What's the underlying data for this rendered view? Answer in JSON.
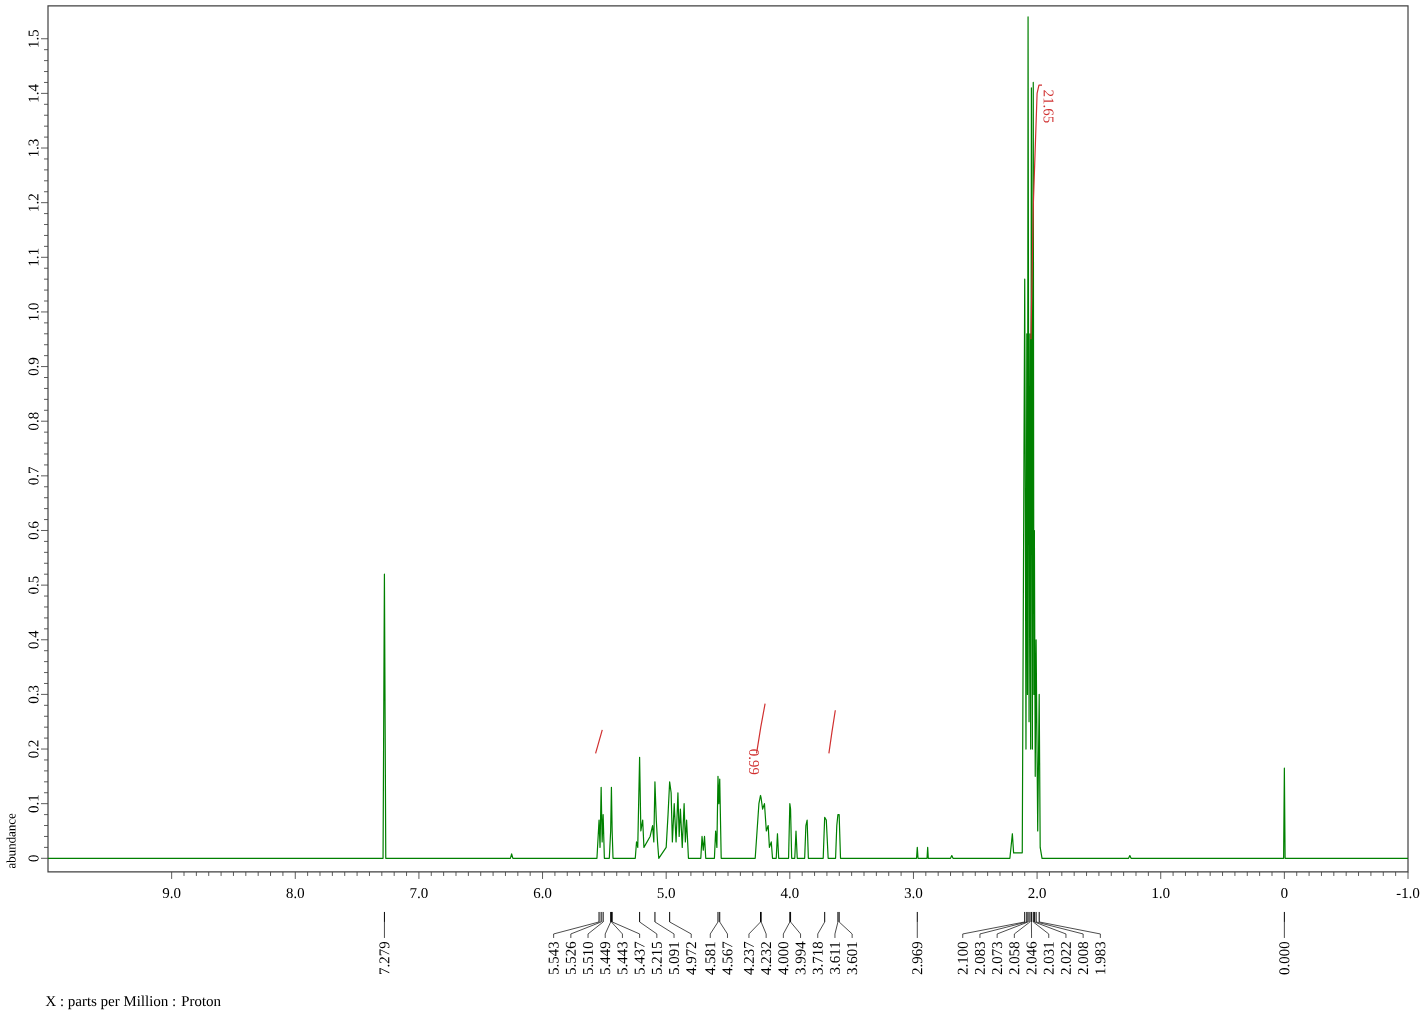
{
  "chart_data": {
    "type": "line",
    "ylabel": "abundance",
    "xlim": [
      10,
      -1
    ],
    "ylim": [
      -0.025,
      1.56
    ],
    "xticks": [
      {
        "value": 9,
        "label": "9.0"
      },
      {
        "value": 8,
        "label": "8.0"
      },
      {
        "value": 7,
        "label": "7.0"
      },
      {
        "value": 6,
        "label": "6.0"
      },
      {
        "value": 5,
        "label": "5.0"
      },
      {
        "value": 4,
        "label": "4.0"
      },
      {
        "value": 3,
        "label": "3.0"
      },
      {
        "value": 2,
        "label": "2.0"
      },
      {
        "value": 1,
        "label": "1.0"
      },
      0,
      {
        "value": -1,
        "label": "-1.0"
      }
    ],
    "yticks": [
      0,
      0.1,
      0.2,
      0.3,
      0.4,
      0.5,
      0.6,
      0.7,
      0.8,
      0.9,
      {
        "value": 1.0,
        "label": "1.0"
      },
      1.1,
      1.2,
      1.3,
      1.4,
      1.5
    ],
    "series": [
      {
        "color": "#008000",
        "x": [
          10.0,
          7.29,
          7.279,
          7.268,
          6.26,
          6.25,
          6.24,
          5.56,
          5.543,
          5.535,
          5.526,
          5.518,
          5.51,
          5.5,
          5.46,
          5.449,
          5.443,
          5.437,
          5.43,
          5.25,
          5.24,
          5.23,
          5.215,
          5.205,
          5.19,
          5.18,
          5.13,
          5.11,
          5.1,
          5.091,
          5.08,
          5.07,
          5.06,
          5.0,
          4.985,
          4.972,
          4.96,
          4.95,
          4.935,
          4.92,
          4.905,
          4.895,
          4.885,
          4.87,
          4.855,
          4.845,
          4.835,
          4.82,
          4.72,
          4.71,
          4.7,
          4.69,
          4.68,
          4.61,
          4.6,
          4.59,
          4.581,
          4.574,
          4.567,
          4.555,
          4.28,
          4.265,
          4.25,
          4.237,
          4.232,
          4.22,
          4.205,
          4.19,
          4.175,
          4.165,
          4.15,
          4.14,
          4.11,
          4.1,
          4.09,
          4.01,
          4.0,
          3.994,
          3.985,
          3.96,
          3.95,
          3.94,
          3.88,
          3.87,
          3.86,
          3.85,
          3.73,
          3.718,
          3.705,
          3.69,
          3.63,
          3.62,
          3.611,
          3.601,
          3.59,
          2.975,
          2.969,
          2.963,
          2.89,
          2.885,
          2.88,
          2.7,
          2.69,
          2.68,
          2.22,
          2.2,
          2.19,
          2.12,
          2.1,
          2.09,
          2.083,
          2.078,
          2.073,
          2.065,
          2.058,
          2.052,
          2.046,
          2.038,
          2.031,
          2.026,
          2.022,
          2.015,
          2.008,
          1.995,
          1.983,
          1.975,
          1.96,
          1.26,
          1.25,
          1.24,
          0.006,
          0.0,
          -0.006,
          -1.0
        ],
        "values": [
          0,
          0,
          0.52,
          0,
          0,
          0.008,
          0,
          0,
          0.07,
          0.02,
          0.13,
          0.03,
          0.08,
          0,
          0,
          0.05,
          0.13,
          0.05,
          0,
          0,
          0.03,
          0.02,
          0.185,
          0.05,
          0.07,
          0.02,
          0.04,
          0.06,
          0.03,
          0.14,
          0.07,
          0.03,
          0,
          0.02,
          0.08,
          0.14,
          0.12,
          0.03,
          0.1,
          0.03,
          0.12,
          0.04,
          0.09,
          0.02,
          0.1,
          0.03,
          0.07,
          0,
          0,
          0.04,
          0.015,
          0.04,
          0,
          0,
          0.05,
          0.02,
          0.15,
          0.1,
          0.145,
          0,
          0,
          0.05,
          0.1,
          0.115,
          0.11,
          0.09,
          0.1,
          0.05,
          0.06,
          0.02,
          0.03,
          0,
          0,
          0.045,
          0,
          0,
          0.1,
          0.09,
          0,
          0,
          0.05,
          0,
          0,
          0.06,
          0.07,
          0,
          0,
          0.075,
          0.07,
          0,
          0,
          0.06,
          0.08,
          0.08,
          0,
          0,
          0.02,
          0,
          0,
          0.02,
          0,
          0,
          0.005,
          0,
          0,
          0.045,
          0.01,
          0.01,
          1.06,
          0.2,
          0.96,
          0.3,
          1.54,
          0.25,
          0.96,
          0.2,
          1.41,
          0.2,
          1.42,
          0.3,
          0.6,
          0.15,
          0.4,
          0.05,
          0.3,
          0.02,
          0,
          0,
          0.005,
          0,
          0,
          0.165,
          0,
          0
        ]
      },
      {
        "color": "#d03030",
        "x": [
          5.571,
          5.517
        ],
        "values": [
          0.192,
          0.235
        ]
      },
      {
        "color": "#d03030",
        "x": [
          4.269,
          4.235,
          4.2
        ],
        "values": [
          0.192,
          0.24,
          0.283
        ]
      },
      {
        "color": "#d03030",
        "x": [
          3.684,
          3.66,
          3.632
        ],
        "values": [
          0.192,
          0.23,
          0.271
        ]
      },
      {
        "color": "#d03030",
        "x": [
          2.05,
          2.03,
          2.0,
          1.985,
          1.96
        ],
        "values": [
          0.95,
          1.2,
          1.4,
          1.415,
          1.415
        ]
      }
    ],
    "annotations": [
      {
        "text": "7.279",
        "x": 7.279
      },
      {
        "text": "5.543",
        "x": 5.543
      },
      {
        "text": "5.526",
        "x": 5.526
      },
      {
        "text": "5.510",
        "x": 5.51
      },
      {
        "text": "5.449",
        "x": 5.449
      },
      {
        "text": "5.443",
        "x": 5.443
      },
      {
        "text": "5.437",
        "x": 5.437
      },
      {
        "text": "5.215",
        "x": 5.215
      },
      {
        "text": "5.091",
        "x": 5.091
      },
      {
        "text": "4.972",
        "x": 4.972
      },
      {
        "text": "4.581",
        "x": 4.581
      },
      {
        "text": "4.567",
        "x": 4.567
      },
      {
        "text": "4.237",
        "x": 4.237
      },
      {
        "text": "4.232",
        "x": 4.232
      },
      {
        "text": "4.000",
        "x": 4.0
      },
      {
        "text": "3.994",
        "x": 3.994
      },
      {
        "text": "3.718",
        "x": 3.718
      },
      {
        "text": "3.611",
        "x": 3.611
      },
      {
        "text": "3.601",
        "x": 3.601
      },
      {
        "text": "2.969",
        "x": 2.969
      },
      {
        "text": "2.100",
        "x": 2.1
      },
      {
        "text": "2.083",
        "x": 2.083
      },
      {
        "text": "2.073",
        "x": 2.073
      },
      {
        "text": "2.058",
        "x": 2.058
      },
      {
        "text": "2.046",
        "x": 2.046
      },
      {
        "text": "2.031",
        "x": 2.031
      },
      {
        "text": "2.022",
        "x": 2.022
      },
      {
        "text": "2.008",
        "x": 2.008
      },
      {
        "text": "1.983",
        "x": 1.983
      },
      {
        "text": "0.000",
        "x": 0.0
      },
      {
        "text": "0.99",
        "x": 4.581,
        "y": 0.15
      },
      {
        "text": "21.65",
        "x": 1.96,
        "y": 1.415
      },
      "X : parts per Million : Proton"
    ]
  }
}
